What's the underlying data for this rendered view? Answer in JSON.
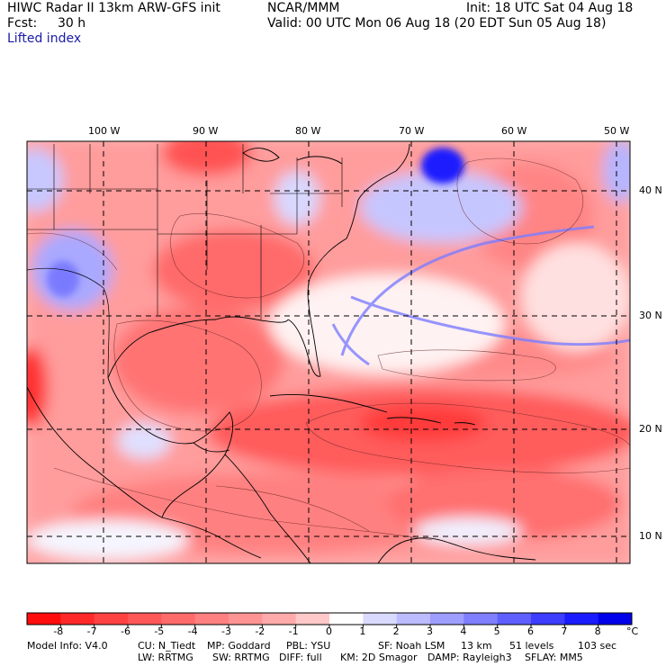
{
  "header": {
    "title": "HIWC Radar II 13km ARW-GFS init",
    "source": "NCAR/MMM",
    "init": "Init: 18 UTC Sat 04 Aug 18",
    "fcst_label": "Fcst:",
    "fcst_value": "30 h",
    "valid": "Valid: 00 UTC Mon 06 Aug 18 (20 EDT Sun 05 Aug 18)",
    "field": "Lifted index"
  },
  "map": {
    "lon_labels": [
      "100 W",
      "90 W",
      "80 W",
      "70 W",
      "60 W",
      "50 W"
    ],
    "lat_labels": [
      "40 N",
      "30 N",
      "20 N",
      "10 N"
    ]
  },
  "colorbar": {
    "ticks": [
      "-8",
      "-7",
      "-6",
      "-5",
      "-4",
      "-3",
      "-2",
      "-1",
      "0",
      "1",
      "2",
      "3",
      "4",
      "5",
      "6",
      "7",
      "8"
    ],
    "unit": "°C",
    "colors": [
      "#ff0d0d",
      "#ff2929",
      "#ff4242",
      "#ff5757",
      "#ff6b6b",
      "#ff8080",
      "#ff9494",
      "#ffabab",
      "#ffc9c9",
      "#ffffff",
      "#dadaff",
      "#bcbcff",
      "#9e9eff",
      "#7f7fff",
      "#5f5fff",
      "#3d3dff",
      "#1b1bff",
      "#0000ea"
    ]
  },
  "model_info": {
    "line1": [
      "Model Info: V4.0",
      "CU: N_Tiedt",
      "MP: Goddard",
      "PBL: YSU",
      "SF: Noah LSM",
      "13 km",
      "51 levels",
      "103 sec"
    ],
    "line2": [
      "LW: RRTMG",
      "SW: RRTMG",
      "DIFF: full",
      "KM: 2D Smagor",
      "DAMP: Rayleigh3",
      "SFLAY: MM5"
    ]
  }
}
